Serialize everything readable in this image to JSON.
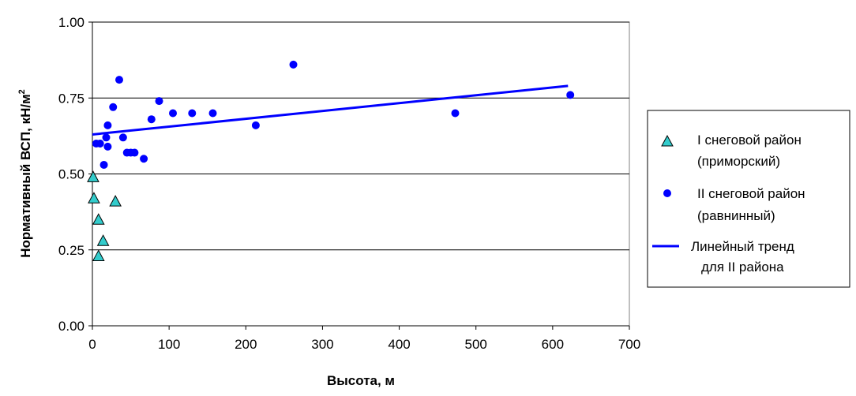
{
  "chart_data": {
    "type": "scatter",
    "xlabel": "Высота, м",
    "ylabel": "Нормативный ВСП, кН/м",
    "ylabel_sup": "2",
    "xlim": [
      0,
      700
    ],
    "ylim": [
      0,
      1
    ],
    "x_ticks": [
      "0",
      "100",
      "200",
      "300",
      "400",
      "500",
      "600",
      "700"
    ],
    "y_ticks": [
      "0.00",
      "0.25",
      "0.50",
      "0.75",
      "1.00"
    ],
    "grid": "horizontal",
    "legend_position": "right",
    "series": [
      {
        "name_lines": [
          "I снеговой район",
          "(приморский)"
        ],
        "marker": "triangle",
        "color": "#33CCCC",
        "points": [
          [
            1,
            0.49
          ],
          [
            2,
            0.42
          ],
          [
            8,
            0.35
          ],
          [
            14,
            0.28
          ],
          [
            8,
            0.23
          ],
          [
            30,
            0.41
          ]
        ]
      },
      {
        "name_lines": [
          "II снеговой район",
          "(равнинный)"
        ],
        "marker": "circle",
        "color": "#0000FF",
        "points": [
          [
            5,
            0.6
          ],
          [
            10,
            0.6
          ],
          [
            15,
            0.53
          ],
          [
            18,
            0.62
          ],
          [
            20,
            0.66
          ],
          [
            20,
            0.59
          ],
          [
            27,
            0.72
          ],
          [
            35,
            0.81
          ],
          [
            40,
            0.62
          ],
          [
            45,
            0.57
          ],
          [
            50,
            0.57
          ],
          [
            55,
            0.57
          ],
          [
            67,
            0.55
          ],
          [
            77,
            0.68
          ],
          [
            87,
            0.74
          ],
          [
            105,
            0.7
          ],
          [
            130,
            0.7
          ],
          [
            157,
            0.7
          ],
          [
            213,
            0.66
          ],
          [
            262,
            0.86
          ],
          [
            473,
            0.7
          ],
          [
            623,
            0.76
          ]
        ]
      }
    ],
    "trend": {
      "name_lines": [
        "Линейный тренд",
        "для II района"
      ],
      "color": "#0000FF",
      "points": [
        [
          0,
          0.63
        ],
        [
          620,
          0.79
        ]
      ]
    }
  }
}
